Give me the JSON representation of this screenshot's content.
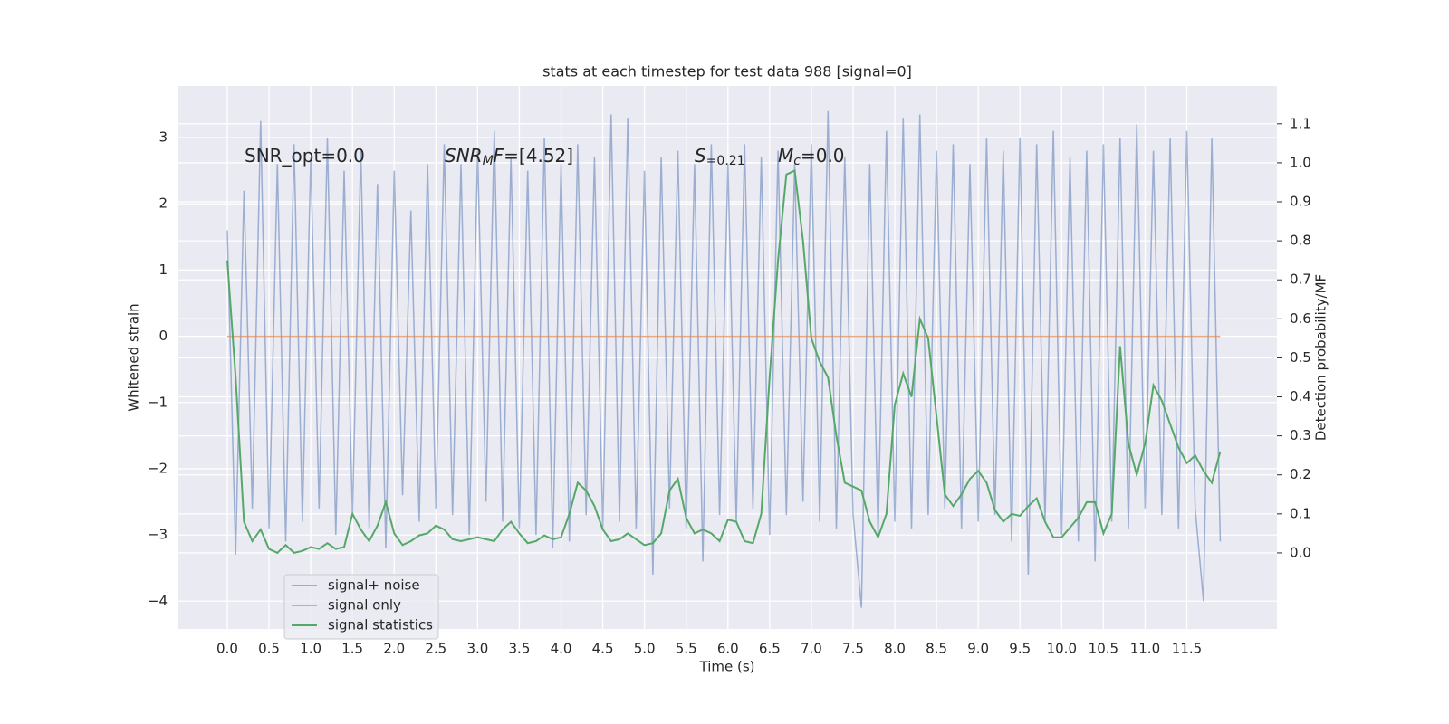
{
  "chart_data": {
    "type": "line",
    "title": "stats at each timestep for test data 988 [signal=0]",
    "xlabel": "Time (s)",
    "ylabel": "Whitened strain",
    "y2label": "Detection probability/MF",
    "annotations": [
      {
        "parts": [
          "SNR_opt=0.0"
        ]
      },
      {
        "parts": [
          "SNR",
          "M",
          "F",
          "=[4.52]"
        ]
      },
      {
        "parts": [
          "S",
          "=0.21"
        ]
      },
      {
        "parts": [
          "M",
          "c",
          "=0.0"
        ]
      }
    ],
    "grid": true,
    "legend": "lower left",
    "xlim": [
      -0.586,
      12.58
    ],
    "ylim": [
      -4.42,
      3.78
    ],
    "y2lim": [
      -0.195,
      1.197
    ],
    "xticks": [
      {
        "value": 0,
        "label": "0.0"
      },
      0.5,
      {
        "value": 1,
        "label": "1.0"
      },
      1.5,
      {
        "value": 2,
        "label": "2.0"
      },
      2.5,
      {
        "value": 3,
        "label": "3.0"
      },
      3.5,
      {
        "value": 4,
        "label": "4.0"
      },
      4.5,
      {
        "value": 5,
        "label": "5.0"
      },
      5.5,
      {
        "value": 6,
        "label": "6.0"
      },
      6.5,
      {
        "value": 7,
        "label": "7.0"
      },
      7.5,
      {
        "value": 8,
        "label": "8.0"
      },
      8.5,
      {
        "value": 9,
        "label": "9.0"
      },
      9.5,
      {
        "value": 10,
        "label": "10.0"
      },
      10.5,
      {
        "value": 11,
        "label": "11.0"
      },
      11.5
    ],
    "yticks": [
      {
        "value": -4,
        "label": "−4"
      },
      {
        "value": -3,
        "label": "−3"
      },
      {
        "value": -2,
        "label": "−2"
      },
      {
        "value": -1,
        "label": "−1"
      },
      0,
      1,
      2,
      3
    ],
    "y2ticks": [
      {
        "value": 0,
        "label": "0.0"
      },
      0.1,
      0.2,
      0.3,
      0.4,
      0.5,
      0.6,
      0.7,
      0.8,
      0.9,
      {
        "value": 1,
        "label": "1.0"
      },
      1.1
    ],
    "x": [
      0.0,
      0.1,
      0.2,
      0.3,
      0.4,
      0.5,
      0.6,
      0.7,
      0.8,
      0.9,
      1.0,
      1.1,
      1.2,
      1.3,
      1.4,
      1.5,
      1.6,
      1.7,
      1.8,
      1.9,
      2.0,
      2.1,
      2.2,
      2.3,
      2.4,
      2.5,
      2.6,
      2.7,
      2.8,
      2.9,
      3.0,
      3.1,
      3.2,
      3.3,
      3.4,
      3.5,
      3.6,
      3.7,
      3.8,
      3.9,
      4.0,
      4.1,
      4.2,
      4.3,
      4.4,
      4.5,
      4.6,
      4.7,
      4.8,
      4.9,
      5.0,
      5.1,
      5.2,
      5.3,
      5.4,
      5.5,
      5.6,
      5.7,
      5.8,
      5.9,
      6.0,
      6.1,
      6.2,
      6.3,
      6.4,
      6.5,
      6.6,
      6.7,
      6.8,
      6.9,
      7.0,
      7.1,
      7.2,
      7.3,
      7.4,
      7.5,
      7.6,
      7.7,
      7.8,
      7.9,
      8.0,
      8.1,
      8.2,
      8.3,
      8.4,
      8.5,
      8.6,
      8.7,
      8.8,
      8.9,
      9.0,
      9.1,
      9.2,
      9.3,
      9.4,
      9.5,
      9.6,
      9.7,
      9.8,
      9.9,
      10.0,
      10.1,
      10.2,
      10.3,
      10.4,
      10.5,
      10.6,
      10.7,
      10.8,
      10.9,
      11.0,
      11.1,
      11.2,
      11.3,
      11.4,
      11.5,
      11.6,
      11.7,
      11.8,
      11.9
    ],
    "series": [
      {
        "name": "signal+ noise",
        "color": "#4c72b0",
        "alpha": 0.5,
        "values": [
          1.6,
          -3.3,
          2.2,
          -2.6,
          3.25,
          -2.9,
          2.6,
          -3.1,
          2.9,
          -2.8,
          2.7,
          -2.6,
          3.0,
          -3.0,
          2.5,
          -2.7,
          2.8,
          -2.9,
          2.3,
          -3.2,
          2.5,
          -2.4,
          1.9,
          -2.8,
          2.6,
          -2.6,
          2.9,
          -2.7,
          2.6,
          -3.0,
          2.8,
          -2.5,
          3.1,
          -2.8,
          2.7,
          -2.9,
          2.5,
          -3.0,
          3.0,
          -3.2,
          2.6,
          -3.1,
          2.9,
          -2.7,
          2.7,
          -2.9,
          3.35,
          -2.8,
          3.3,
          -2.9,
          2.5,
          -3.6,
          2.7,
          -2.6,
          2.8,
          -2.9,
          2.6,
          -3.4,
          2.9,
          -2.7,
          2.6,
          -2.8,
          2.9,
          -2.6,
          2.7,
          -3.0,
          2.8,
          -2.7,
          2.6,
          -2.5,
          2.9,
          -2.8,
          3.4,
          -2.9,
          2.7,
          -2.7,
          -4.1,
          2.6,
          -3.0,
          3.1,
          -2.8,
          3.3,
          -2.9,
          3.35,
          -2.7,
          2.8,
          -2.6,
          2.9,
          -2.9,
          2.6,
          -2.8,
          3.0,
          -2.7,
          2.8,
          -3.1,
          3.0,
          -3.6,
          2.9,
          -2.8,
          3.1,
          -3.0,
          2.7,
          -3.1,
          2.8,
          -3.4,
          2.9,
          -2.8,
          3.0,
          -2.9,
          3.2,
          -2.6,
          2.8,
          -2.7,
          3.0,
          -2.9,
          3.1,
          -2.6,
          -4.0,
          3.0,
          -3.1
        ]
      },
      {
        "name": "signal only",
        "color": "#dd8452",
        "alpha": 0.7,
        "values": [
          0,
          0,
          0,
          0,
          0,
          0,
          0,
          0,
          0,
          0,
          0,
          0,
          0,
          0,
          0,
          0,
          0,
          0,
          0,
          0,
          0,
          0,
          0,
          0,
          0,
          0,
          0,
          0,
          0,
          0,
          0,
          0,
          0,
          0,
          0,
          0,
          0,
          0,
          0,
          0,
          0,
          0,
          0,
          0,
          0,
          0,
          0,
          0,
          0,
          0,
          0,
          0,
          0,
          0,
          0,
          0,
          0,
          0,
          0,
          0,
          0,
          0,
          0,
          0,
          0,
          0,
          0,
          0,
          0,
          0,
          0,
          0,
          0,
          0,
          0,
          0,
          0,
          0,
          0,
          0,
          0,
          0,
          0,
          0,
          0,
          0,
          0,
          0,
          0,
          0,
          0,
          0,
          0,
          0,
          0,
          0,
          0,
          0,
          0,
          0,
          0,
          0,
          0,
          0,
          0,
          0,
          0,
          0,
          0,
          0,
          0,
          0,
          0,
          0,
          0,
          0,
          0,
          0,
          0,
          0
        ]
      },
      {
        "name": "signal statistics",
        "color": "#55a868",
        "alpha": 1,
        "axis": "y2",
        "values": [
          0.75,
          0.45,
          0.08,
          0.03,
          0.06,
          0.01,
          0.0,
          0.02,
          0.0,
          0.005,
          0.015,
          0.01,
          0.025,
          0.01,
          0.015,
          0.1,
          0.06,
          0.03,
          0.07,
          0.13,
          0.05,
          0.02,
          0.03,
          0.045,
          0.05,
          0.07,
          0.06,
          0.035,
          0.03,
          0.035,
          0.04,
          0.035,
          0.03,
          0.06,
          0.08,
          0.05,
          0.025,
          0.03,
          0.045,
          0.035,
          0.04,
          0.1,
          0.18,
          0.16,
          0.12,
          0.06,
          0.03,
          0.035,
          0.05,
          0.035,
          0.02,
          0.025,
          0.05,
          0.16,
          0.19,
          0.09,
          0.05,
          0.06,
          0.05,
          0.03,
          0.085,
          0.08,
          0.03,
          0.025,
          0.1,
          0.45,
          0.75,
          0.97,
          0.98,
          0.8,
          0.55,
          0.49,
          0.45,
          0.3,
          0.18,
          0.17,
          0.16,
          0.08,
          0.04,
          0.1,
          0.38,
          0.46,
          0.4,
          0.6,
          0.55,
          0.35,
          0.15,
          0.12,
          0.15,
          0.19,
          0.21,
          0.18,
          0.11,
          0.08,
          0.1,
          0.095,
          0.12,
          0.14,
          0.08,
          0.04,
          0.04,
          0.065,
          0.09,
          0.13,
          0.13,
          0.05,
          0.1,
          0.53,
          0.28,
          0.2,
          0.28,
          0.43,
          0.39,
          0.33,
          0.27,
          0.23,
          0.25,
          0.21,
          0.18,
          0.26
        ]
      }
    ]
  }
}
